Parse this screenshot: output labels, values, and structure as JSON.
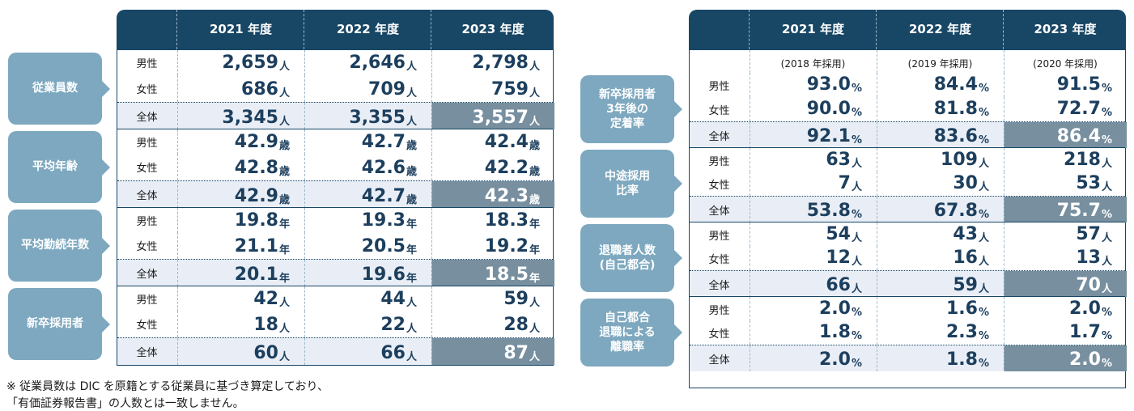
{
  "left": {
    "headers": [
      "2021 年度",
      "2022 年度",
      "2023 年度"
    ],
    "groups": [
      {
        "label": "従業員数",
        "rows": [
          {
            "label": "男性",
            "values": [
              "2,659",
              "2,646",
              "2,798"
            ],
            "unit": "人"
          },
          {
            "label": "女性",
            "values": [
              "686",
              "709",
              "759"
            ],
            "unit": "人"
          },
          {
            "label": "全体",
            "values": [
              "3,345",
              "3,355",
              "3,557"
            ],
            "unit": "人"
          }
        ]
      },
      {
        "label": "平均年齢",
        "rows": [
          {
            "label": "男性",
            "values": [
              "42.9",
              "42.7",
              "42.4"
            ],
            "unit": "歳"
          },
          {
            "label": "女性",
            "values": [
              "42.8",
              "42.6",
              "42.2"
            ],
            "unit": "歳"
          },
          {
            "label": "全体",
            "values": [
              "42.9",
              "42.7",
              "42.3"
            ],
            "unit": "歳"
          }
        ]
      },
      {
        "label": "平均勤続年数",
        "rows": [
          {
            "label": "男性",
            "values": [
              "19.8",
              "19.3",
              "18.3"
            ],
            "unit": "年"
          },
          {
            "label": "女性",
            "values": [
              "21.1",
              "20.5",
              "19.2"
            ],
            "unit": "年"
          },
          {
            "label": "全体",
            "values": [
              "20.1",
              "19.6",
              "18.5"
            ],
            "unit": "年"
          }
        ]
      },
      {
        "label": "新卒採用者",
        "rows": [
          {
            "label": "男性",
            "values": [
              "42",
              "44",
              "59"
            ],
            "unit": "人"
          },
          {
            "label": "女性",
            "values": [
              "18",
              "22",
              "28"
            ],
            "unit": "人"
          },
          {
            "label": "全体",
            "values": [
              "60",
              "66",
              "87"
            ],
            "unit": "人"
          }
        ]
      }
    ]
  },
  "right": {
    "headers": [
      "2021 年度",
      "2022 年度",
      "2023 年度"
    ],
    "subheaders": [
      "(2018 年採用)",
      "(2019 年採用)",
      "(2020 年採用)"
    ],
    "groups": [
      {
        "label": "新卒採用者\n3年後の\n定着率",
        "rows": [
          {
            "label": "男性",
            "values": [
              "93.0",
              "84.4",
              "91.5"
            ],
            "unit": "%"
          },
          {
            "label": "女性",
            "values": [
              "90.0",
              "81.8",
              "72.7"
            ],
            "unit": "%"
          },
          {
            "label": "全体",
            "values": [
              "92.1",
              "83.6",
              "86.4"
            ],
            "unit": "%"
          }
        ]
      },
      {
        "label": "中途採用\n比率",
        "rows": [
          {
            "label": "男性",
            "values": [
              "63",
              "109",
              "218"
            ],
            "unit": "人"
          },
          {
            "label": "女性",
            "values": [
              "7",
              "30",
              "53"
            ],
            "unit": "人"
          },
          {
            "label": "全体",
            "values": [
              "53.8",
              "67.8",
              "75.7"
            ],
            "unit": "%"
          }
        ]
      },
      {
        "label": "退職者人数\n(自己都合)",
        "rows": [
          {
            "label": "男性",
            "values": [
              "54",
              "43",
              "57"
            ],
            "unit": "人"
          },
          {
            "label": "女性",
            "values": [
              "12",
              "16",
              "13"
            ],
            "unit": "人"
          },
          {
            "label": "全体",
            "values": [
              "66",
              "59",
              "70"
            ],
            "unit": "人"
          }
        ]
      },
      {
        "label": "自己都合\n退職による\n離職率",
        "rows": [
          {
            "label": "男性",
            "values": [
              "2.0",
              "1.6",
              "2.0"
            ],
            "unit": "%"
          },
          {
            "label": "女性",
            "values": [
              "1.8",
              "2.3",
              "1.7"
            ],
            "unit": "%"
          },
          {
            "label": "全体",
            "values": [
              "2.0",
              "1.8",
              "2.0"
            ],
            "unit": "%"
          }
        ]
      }
    ]
  },
  "footnote": {
    "line1": "※ 従業員数は DIC を原籍とする従業員に基づき算定しており、",
    "line2": "「有価証券報告書」の人数とは一致しません。"
  },
  "colors": {
    "header": "#184766",
    "category": "#7da8bf",
    "highlight": "#778f9f",
    "total_row": "#e9eef6",
    "number": "#1d3f5e"
  }
}
